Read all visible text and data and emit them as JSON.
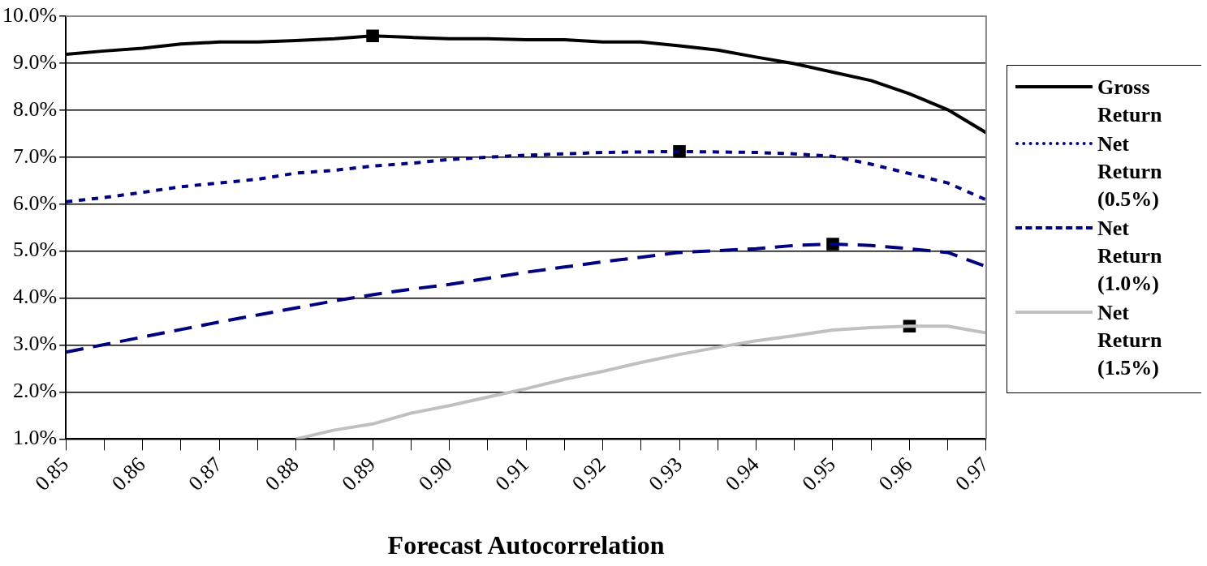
{
  "chart_data": {
    "type": "line",
    "xlabel": "Forecast Autocorrelation",
    "x": [
      0.85,
      0.855,
      0.86,
      0.865,
      0.87,
      0.875,
      0.88,
      0.885,
      0.89,
      0.895,
      0.9,
      0.905,
      0.91,
      0.915,
      0.92,
      0.925,
      0.93,
      0.935,
      0.94,
      0.945,
      0.95,
      0.955,
      0.96,
      0.965,
      0.97
    ],
    "series": [
      {
        "name": "Gross Return",
        "color": "#000000",
        "line_style": "solid",
        "values": [
          9.19,
          9.26,
          9.32,
          9.41,
          9.45,
          9.45,
          9.48,
          9.52,
          9.58,
          9.55,
          9.52,
          9.52,
          9.5,
          9.5,
          9.45,
          9.45,
          9.37,
          9.28,
          9.13,
          8.99,
          8.81,
          8.63,
          8.35,
          8.01,
          7.52
        ]
      },
      {
        "name": "Net Return (0.5%)",
        "color": "#000080",
        "line_style": "dotted",
        "values": [
          6.05,
          6.14,
          6.25,
          6.37,
          6.45,
          6.53,
          6.66,
          6.72,
          6.81,
          6.87,
          6.95,
          7.0,
          7.04,
          7.07,
          7.1,
          7.11,
          7.12,
          7.11,
          7.1,
          7.07,
          7.02,
          6.85,
          6.65,
          6.45,
          6.09
        ]
      },
      {
        "name": "Net Return (1.0%)",
        "color": "#000080",
        "line_style": "dashed",
        "values": [
          2.85,
          3.01,
          3.17,
          3.33,
          3.49,
          3.64,
          3.79,
          3.94,
          4.07,
          4.19,
          4.29,
          4.42,
          4.55,
          4.66,
          4.77,
          4.87,
          4.97,
          5.01,
          5.05,
          5.12,
          5.15,
          5.12,
          5.05,
          4.97,
          4.67
        ]
      },
      {
        "name": "Net Return (1.5%)",
        "color": "#c0c0c0",
        "line_style": "solid",
        "values": [
          null,
          null,
          null,
          null,
          null,
          null,
          1.0,
          1.19,
          1.32,
          1.55,
          1.71,
          1.89,
          2.07,
          2.27,
          2.44,
          2.63,
          2.8,
          2.95,
          3.09,
          3.2,
          3.32,
          3.37,
          3.4,
          3.4,
          3.26
        ]
      },
      {
        "type": "scatter",
        "marker": "square",
        "color": "#000000",
        "x": [
          0.89,
          0.93,
          0.95,
          0.96
        ],
        "values": [
          9.58,
          7.12,
          5.15,
          3.4
        ]
      }
    ],
    "xlim": [
      0.85,
      0.97
    ],
    "xticks": [
      0.85,
      {
        "value": 0.855,
        "label": null
      },
      {
        "value": 0.86,
        "label": "0.86"
      },
      {
        "value": 0.865,
        "label": null
      },
      {
        "value": 0.87,
        "label": "0.87"
      },
      {
        "value": 0.875,
        "label": null
      },
      {
        "value": 0.88,
        "label": "0.88"
      },
      {
        "value": 0.885,
        "label": null
      },
      {
        "value": 0.89,
        "label": "0.89"
      },
      {
        "value": 0.895,
        "label": null
      },
      {
        "value": 0.9,
        "label": "0.90"
      },
      {
        "value": 0.905,
        "label": null
      },
      {
        "value": 0.91,
        "label": "0.91"
      },
      {
        "value": 0.915,
        "label": null
      },
      {
        "value": 0.92,
        "label": "0.92"
      },
      {
        "value": 0.925,
        "label": null
      },
      {
        "value": 0.93,
        "label": "0.93"
      },
      {
        "value": 0.935,
        "label": null
      },
      {
        "value": 0.94,
        "label": "0.94"
      },
      {
        "value": 0.945,
        "label": null
      },
      {
        "value": 0.95,
        "label": "0.95"
      },
      {
        "value": 0.955,
        "label": null
      },
      {
        "value": 0.96,
        "label": "0.96"
      },
      {
        "value": 0.965,
        "label": null
      },
      {
        "value": 0.97,
        "label": "0.97"
      }
    ],
    "ylim": [
      1,
      10
    ],
    "yticks": [
      {
        "value": 1,
        "label": "1.0%"
      },
      {
        "value": 2,
        "label": "2.0%"
      },
      {
        "value": 3,
        "label": "3.0%"
      },
      {
        "value": 4,
        "label": "4.0%"
      },
      {
        "value": 5,
        "label": "5.0%"
      },
      {
        "value": 6,
        "label": "6.0%"
      },
      {
        "value": 7,
        "label": "7.0%"
      },
      {
        "value": 8,
        "label": "8.0%"
      },
      {
        "value": 9,
        "label": "9.0%"
      },
      {
        "value": 10,
        "label": "10.0%"
      }
    ],
    "grid": "y",
    "legend": "right",
    "marker": "none"
  }
}
